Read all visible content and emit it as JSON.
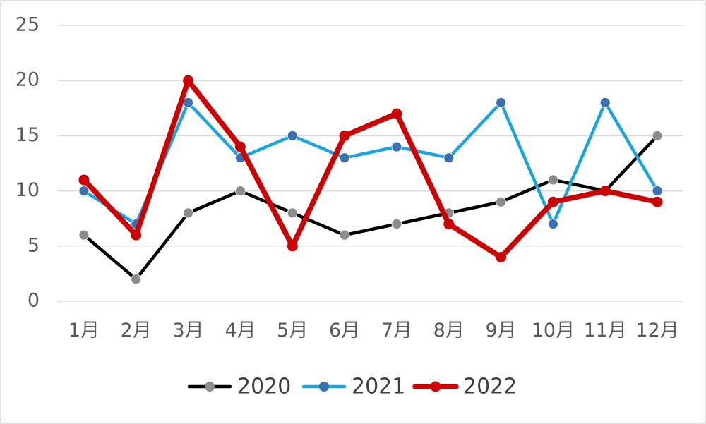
{
  "chart_data": {
    "type": "line",
    "categories": [
      "1月",
      "2月",
      "3月",
      "4月",
      "5月",
      "6月",
      "7月",
      "8月",
      "9月",
      "10月",
      "11月",
      "12月"
    ],
    "ylim": [
      0,
      25
    ],
    "yticks": [
      0,
      5,
      10,
      15,
      20,
      25
    ],
    "grid": true,
    "legend_position": "bottom",
    "series": [
      {
        "name": "2020",
        "color": "#000000",
        "marker_color": "#8c8c8c",
        "values": [
          6,
          2,
          8,
          10,
          8,
          6,
          7,
          8,
          9,
          11,
          10,
          15
        ]
      },
      {
        "name": "2021",
        "color": "#1aa6dc",
        "marker_color": "#3a6fb0",
        "values": [
          10,
          7,
          18,
          13,
          15,
          13,
          14,
          13,
          18,
          7,
          18,
          10
        ]
      },
      {
        "name": "2022",
        "color": "#cc0000",
        "marker_color": "#cc0000",
        "values": [
          11,
          6,
          20,
          14,
          5,
          15,
          17,
          7,
          4,
          9,
          10,
          9
        ]
      }
    ]
  }
}
